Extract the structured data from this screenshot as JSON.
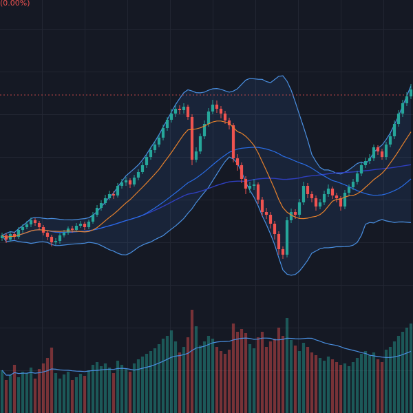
{
  "chart_data": {
    "type": "candlestick",
    "header_text": "(0.00%)",
    "ylim": [
      150,
      560
    ],
    "vlim": [
      0,
      160
    ],
    "price_line": 432,
    "up_color": "#26a69a",
    "down_color": "#ef5350",
    "candles": [
      [
        224,
        232,
        220,
        228
      ],
      [
        228,
        231,
        217,
        222
      ],
      [
        222,
        234,
        219,
        230
      ],
      [
        230,
        233,
        222,
        226
      ],
      [
        226,
        240,
        223,
        236
      ],
      [
        236,
        244,
        232,
        240
      ],
      [
        240,
        249,
        237,
        244
      ],
      [
        244,
        254,
        240,
        250
      ],
      [
        250,
        253,
        242,
        246
      ],
      [
        246,
        249,
        236,
        240
      ],
      [
        240,
        243,
        228,
        232
      ],
      [
        232,
        235,
        221,
        226
      ],
      [
        226,
        229,
        212,
        218
      ],
      [
        218,
        224,
        214,
        220
      ],
      [
        220,
        231,
        216,
        228
      ],
      [
        228,
        236,
        225,
        232
      ],
      [
        232,
        241,
        229,
        238
      ],
      [
        238,
        242,
        232,
        236
      ],
      [
        236,
        246,
        233,
        242
      ],
      [
        242,
        249,
        239,
        245
      ],
      [
        245,
        248,
        236,
        240
      ],
      [
        240,
        251,
        237,
        248
      ],
      [
        248,
        262,
        245,
        258
      ],
      [
        258,
        272,
        255,
        268
      ],
      [
        268,
        279,
        264,
        275
      ],
      [
        275,
        287,
        272,
        282
      ],
      [
        282,
        293,
        279,
        288
      ],
      [
        288,
        292,
        281,
        286
      ],
      [
        286,
        304,
        283,
        300
      ],
      [
        300,
        310,
        296,
        305
      ],
      [
        305,
        313,
        300,
        308
      ],
      [
        308,
        311,
        297,
        302
      ],
      [
        302,
        316,
        299,
        312
      ],
      [
        312,
        324,
        308,
        320
      ],
      [
        320,
        335,
        317,
        330
      ],
      [
        330,
        346,
        326,
        342
      ],
      [
        342,
        357,
        338,
        352
      ],
      [
        352,
        365,
        348,
        360
      ],
      [
        360,
        374,
        356,
        370
      ],
      [
        370,
        389,
        366,
        384
      ],
      [
        384,
        400,
        380,
        396
      ],
      [
        396,
        412,
        392,
        405
      ],
      [
        405,
        418,
        400,
        412
      ],
      [
        412,
        417,
        404,
        410
      ],
      [
        410,
        420,
        405,
        415
      ],
      [
        415,
        418,
        396,
        400
      ],
      [
        400,
        404,
        330,
        338
      ],
      [
        338,
        356,
        334,
        350
      ],
      [
        350,
        376,
        346,
        372
      ],
      [
        372,
        395,
        368,
        390
      ],
      [
        390,
        413,
        386,
        408
      ],
      [
        408,
        425,
        404,
        418
      ],
      [
        418,
        424,
        406,
        412
      ],
      [
        412,
        416,
        398,
        405
      ],
      [
        405,
        409,
        390,
        395
      ],
      [
        395,
        399,
        382,
        388
      ],
      [
        388,
        391,
        334,
        340
      ],
      [
        340,
        346,
        322,
        330
      ],
      [
        330,
        334,
        304,
        310
      ],
      [
        310,
        314,
        288,
        296
      ],
      [
        296,
        306,
        290,
        300
      ],
      [
        300,
        310,
        294,
        302
      ],
      [
        302,
        305,
        274,
        280
      ],
      [
        280,
        284,
        256,
        262
      ],
      [
        262,
        268,
        252,
        258
      ],
      [
        258,
        262,
        238,
        245
      ],
      [
        245,
        249,
        222,
        230
      ],
      [
        230,
        234,
        200,
        208
      ],
      [
        208,
        212,
        194,
        200
      ],
      [
        200,
        255,
        196,
        250
      ],
      [
        250,
        267,
        246,
        262
      ],
      [
        262,
        266,
        252,
        258
      ],
      [
        258,
        281,
        254,
        276
      ],
      [
        276,
        306,
        272,
        300
      ],
      [
        300,
        304,
        282,
        288
      ],
      [
        288,
        292,
        276,
        282
      ],
      [
        282,
        286,
        264,
        270
      ],
      [
        270,
        281,
        266,
        276
      ],
      [
        276,
        293,
        272,
        288
      ],
      [
        288,
        302,
        284,
        296
      ],
      [
        296,
        299,
        281,
        286
      ],
      [
        286,
        290,
        276,
        282
      ],
      [
        282,
        285,
        264,
        270
      ],
      [
        270,
        294,
        266,
        290
      ],
      [
        290,
        302,
        286,
        298
      ],
      [
        298,
        310,
        294,
        306
      ],
      [
        306,
        322,
        302,
        318
      ],
      [
        318,
        334,
        314,
        330
      ],
      [
        330,
        341,
        326,
        336
      ],
      [
        336,
        346,
        332,
        340
      ],
      [
        340,
        360,
        336,
        356
      ],
      [
        356,
        359,
        345,
        350
      ],
      [
        350,
        354,
        338,
        342
      ],
      [
        342,
        364,
        338,
        360
      ],
      [
        360,
        377,
        356,
        372
      ],
      [
        372,
        395,
        368,
        390
      ],
      [
        390,
        410,
        386,
        405
      ],
      [
        405,
        425,
        400,
        420
      ],
      [
        420,
        436,
        416,
        430
      ],
      [
        430,
        448,
        426,
        440
      ]
    ],
    "volume": [
      62,
      48,
      55,
      70,
      52,
      60,
      58,
      66,
      50,
      64,
      72,
      80,
      95,
      58,
      50,
      56,
      60,
      48,
      52,
      57,
      54,
      62,
      70,
      74,
      68,
      72,
      66,
      58,
      76,
      70,
      64,
      60,
      72,
      78,
      82,
      86,
      90,
      94,
      100,
      108,
      112,
      120,
      104,
      88,
      96,
      110,
      150,
      126,
      98,
      104,
      112,
      108,
      96,
      90,
      86,
      92,
      130,
      118,
      122,
      116,
      100,
      94,
      110,
      118,
      96,
      104,
      108,
      124,
      112,
      138,
      106,
      98,
      90,
      102,
      96,
      88,
      84,
      80,
      76,
      82,
      78,
      74,
      70,
      72,
      68,
      74,
      80,
      86,
      90,
      84,
      88,
      78,
      74,
      92,
      96,
      104,
      112,
      118,
      124,
      130
    ]
  }
}
